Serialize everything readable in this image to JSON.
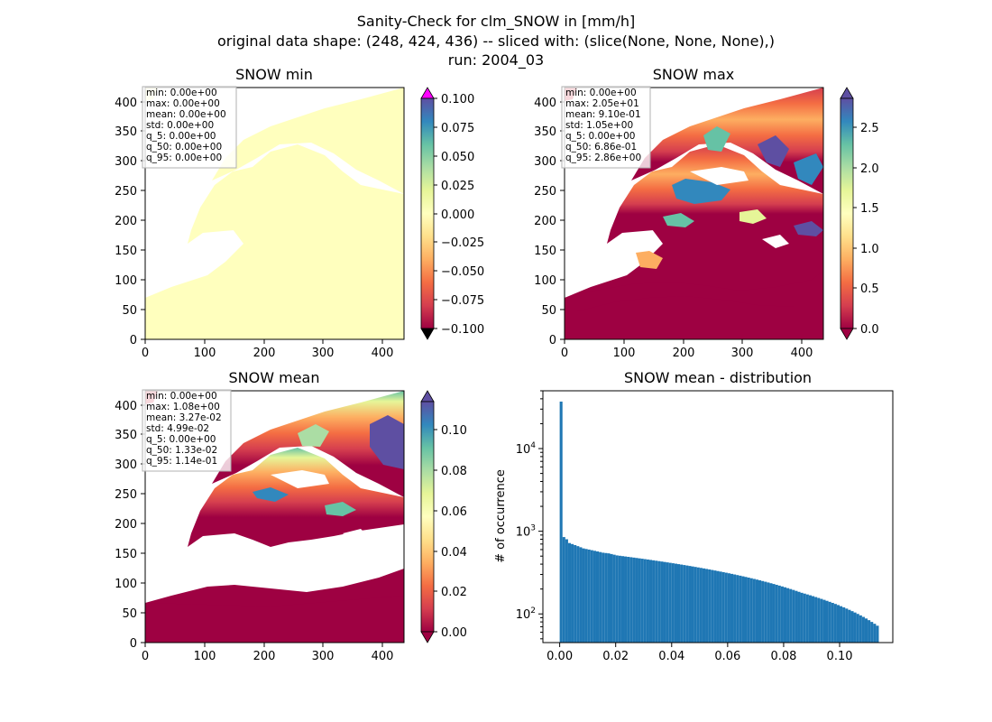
{
  "figure": {
    "title_lines": [
      "Sanity-Check for clm_SNOW in [mm/h]",
      "original data shape: (248, 424, 436) -- sliced with: (slice(None, None, None),)",
      "run: 2004_03"
    ]
  },
  "chart_data": [
    {
      "type": "heatmap",
      "title": "SNOW min",
      "xlim": [
        0,
        436
      ],
      "ylim": [
        0,
        424
      ],
      "x_ticks": [
        "0",
        "100",
        "200",
        "300",
        "400"
      ],
      "y_ticks": [
        "0",
        "50",
        "100",
        "150",
        "200",
        "250",
        "300",
        "350",
        "400"
      ],
      "colormap": "Spectral",
      "colorbar": {
        "range": [
          -0.1,
          0.1
        ],
        "ticks": [
          "0.100",
          "0.075",
          "0.050",
          "0.025",
          "0.000",
          "−0.025",
          "−0.050",
          "−0.075",
          "−0.100"
        ],
        "extend_top_color": "#ff00ff",
        "extend_bottom_color": "#000000"
      },
      "stats": [
        "min: 0.00e+00",
        "max: 0.00e+00",
        "mean: 0.00e+00",
        "std: 0.00e+00",
        "q_5: 0.00e+00",
        "q_50: 0.00e+00",
        "q_95: 0.00e+00"
      ],
      "field_color": "#ffffbe"
    },
    {
      "type": "heatmap",
      "title": "SNOW max",
      "xlim": [
        0,
        436
      ],
      "ylim": [
        0,
        424
      ],
      "x_ticks": [
        "0",
        "100",
        "200",
        "300",
        "400"
      ],
      "y_ticks": [
        "0",
        "50",
        "100",
        "150",
        "200",
        "250",
        "300",
        "350",
        "400"
      ],
      "colormap": "Spectral",
      "colorbar": {
        "range": [
          0,
          2.86
        ],
        "ticks": [
          "2.5",
          "2.0",
          "1.5",
          "1.0",
          "0.5",
          "0.0"
        ]
      },
      "stats": [
        "min: 0.00e+00",
        "max: 2.05e+01",
        "mean: 9.10e-01",
        "std: 1.05e+00",
        "q_5: 0.00e+00",
        "q_50: 6.86e-01",
        "q_95: 2.86e+00"
      ]
    },
    {
      "type": "heatmap",
      "title": "SNOW mean",
      "xlim": [
        0,
        436
      ],
      "ylim": [
        0,
        424
      ],
      "x_ticks": [
        "0",
        "100",
        "200",
        "300",
        "400"
      ],
      "y_ticks": [
        "0",
        "50",
        "100",
        "150",
        "200",
        "250",
        "300",
        "350",
        "400"
      ],
      "colormap": "Spectral",
      "colorbar": {
        "range": [
          0,
          0.114
        ],
        "ticks": [
          "0.10",
          "0.08",
          "0.06",
          "0.04",
          "0.02",
          "0.00"
        ]
      },
      "stats": [
        "min: 0.00e+00",
        "max: 1.08e+00",
        "mean: 3.27e-02",
        "std: 4.99e-02",
        "q_5: 0.00e+00",
        "q_50: 1.33e-02",
        "q_95: 1.14e-01"
      ]
    },
    {
      "type": "bar",
      "title": "SNOW mean - distribution",
      "ylabel": "# of occurrence",
      "xlabel": "",
      "y_scale": "log",
      "xlim": [
        -0.006,
        0.119
      ],
      "ylim": [
        45,
        50000
      ],
      "x_ticks": [
        0.0,
        0.02,
        0.04,
        0.06,
        0.08,
        0.1
      ],
      "x_tick_labels": [
        "0.00",
        "0.02",
        "0.04",
        "0.06",
        "0.08",
        "0.10"
      ],
      "y_ticks": [
        100,
        1000,
        10000
      ],
      "y_tick_labels": [
        [
          "10",
          "2"
        ],
        [
          "10",
          "3"
        ],
        [
          "10",
          "4"
        ]
      ],
      "bar_color": "#1f77b4",
      "bin_range": [
        0,
        0.114
      ],
      "bin_count": 114,
      "counts": [
        37000,
        850,
        800,
        720,
        700,
        680,
        660,
        640,
        620,
        610,
        600,
        590,
        580,
        570,
        560,
        550,
        545,
        540,
        530,
        520,
        510,
        505,
        500,
        495,
        490,
        485,
        480,
        475,
        470,
        465,
        460,
        455,
        450,
        445,
        440,
        435,
        430,
        425,
        420,
        415,
        410,
        405,
        400,
        395,
        390,
        385,
        380,
        375,
        370,
        365,
        360,
        355,
        350,
        345,
        340,
        335,
        330,
        325,
        320,
        315,
        310,
        305,
        300,
        295,
        290,
        285,
        280,
        275,
        270,
        265,
        260,
        255,
        250,
        245,
        240,
        235,
        230,
        225,
        220,
        215,
        210,
        205,
        200,
        195,
        190,
        185,
        180,
        176,
        172,
        168,
        164,
        160,
        156,
        152,
        148,
        144,
        140,
        136,
        132,
        128,
        124,
        120,
        116,
        112,
        108,
        104,
        100,
        96,
        92,
        88,
        84,
        80,
        76,
        72
      ]
    }
  ]
}
